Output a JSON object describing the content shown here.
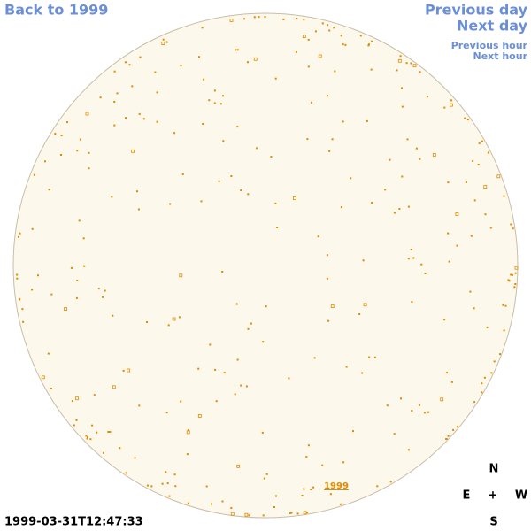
{
  "links": {
    "back": "Back to 1999",
    "previous_day": "Previous day",
    "next_day": "Next day",
    "previous_hour": "Previous hour",
    "next_hour": "Next hour",
    "year": "1999"
  },
  "timestamp": "1999-03-31T12:47:33",
  "compass": {
    "north": "N",
    "east": "E",
    "center": "+",
    "west": "W",
    "south": "S"
  }
}
